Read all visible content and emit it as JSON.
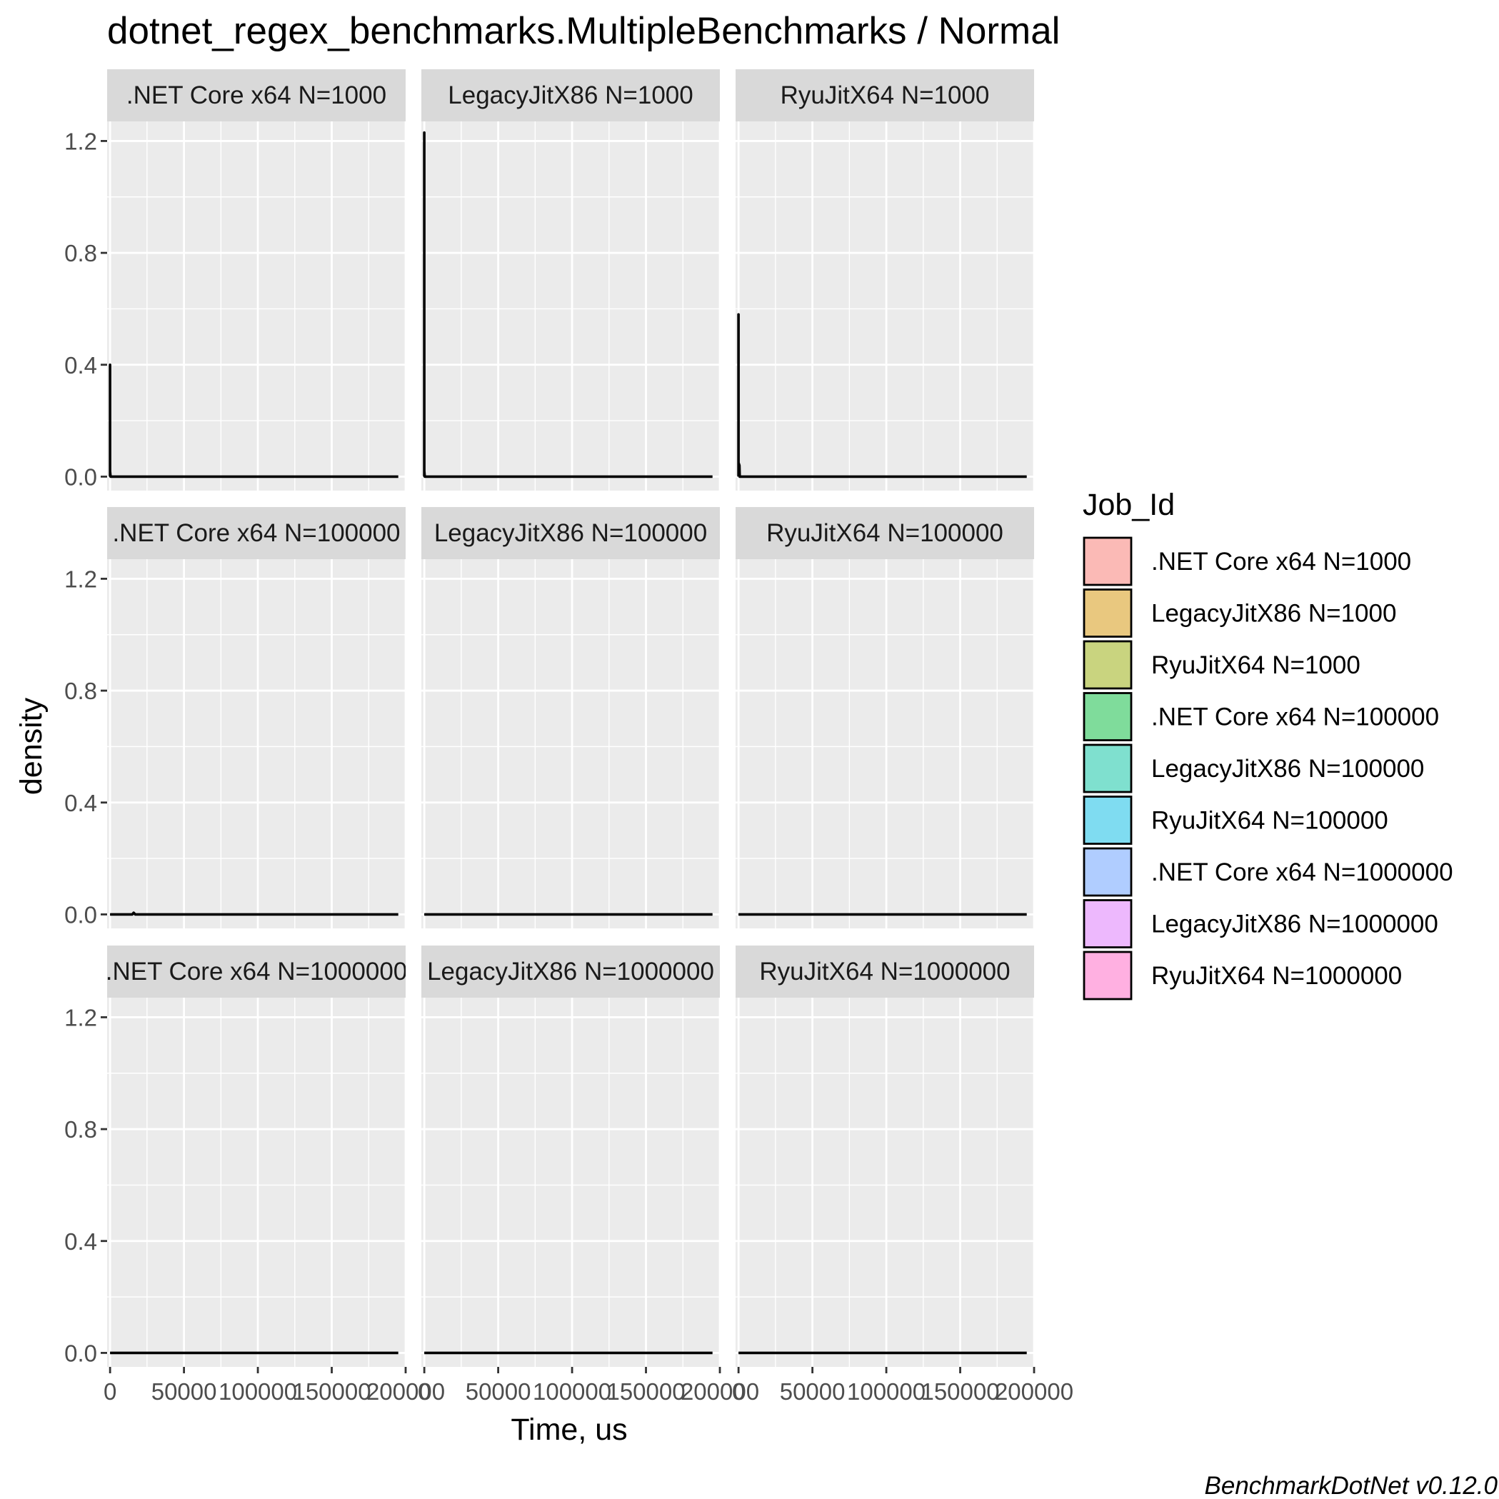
{
  "chart_data": {
    "type": "area",
    "title": "dotnet_regex_benchmarks.MultipleBenchmarks / Normal",
    "xlabel": "Time, us",
    "ylabel": "density",
    "xlim": [
      -2000,
      200000
    ],
    "ylim": [
      -0.05,
      1.27
    ],
    "xticks": [
      0,
      50000,
      100000,
      150000,
      200000
    ],
    "xtick_labels": [
      "0",
      "50000",
      "100000",
      "150000",
      "200000"
    ],
    "yticks": [
      0.0,
      0.4,
      0.8,
      1.2
    ],
    "ytick_labels": [
      "0.0",
      "0.4",
      "0.8",
      "1.2"
    ],
    "grid": true,
    "legend": {
      "title": "Job_Id",
      "placement": "right",
      "entries": [
        {
          "label": ".NET Core x64 N=1000",
          "color": "#F8766D"
        },
        {
          "label": "LegacyJitX86 N=1000",
          "color": "#D39200"
        },
        {
          "label": "RyuJitX64 N=1000",
          "color": "#93AA00"
        },
        {
          "label": ".NET Core x64 N=100000",
          "color": "#00BA38"
        },
        {
          "label": "LegacyJitX86 N=100000",
          "color": "#00C19F"
        },
        {
          "label": "RyuJitX64 N=100000",
          "color": "#00B9E3"
        },
        {
          "label": ".NET Core x64 N=1000000",
          "color": "#619CFF"
        },
        {
          "label": "LegacyJitX86 N=1000000",
          "color": "#DB72FB"
        },
        {
          "label": "RyuJitX64 N=1000000",
          "color": "#FF61C3"
        }
      ]
    },
    "panels": [
      {
        "label": ".NET Core x64 N=1000",
        "color": "#F8766D",
        "x": [
          0,
          0,
          0,
          0,
          300,
          195000
        ],
        "y": [
          0,
          0.4,
          0.4,
          0.02,
          0,
          0
        ]
      },
      {
        "label": "LegacyJitX86 N=1000",
        "color": "#D39200",
        "x": [
          0,
          0,
          0,
          0,
          300,
          195000
        ],
        "y": [
          0,
          1.23,
          1.23,
          0.02,
          0,
          0
        ]
      },
      {
        "label": "RyuJitX64 N=1000",
        "color": "#93AA00",
        "x": [
          0,
          0,
          0,
          0,
          600,
          800,
          195000
        ],
        "y": [
          0,
          0.58,
          0.58,
          0.05,
          0.04,
          0,
          0
        ]
      },
      {
        "label": ".NET Core x64 N=100000",
        "color": "#00BA38",
        "x": [
          0,
          15000,
          16000,
          17000,
          195000
        ],
        "y": [
          0,
          0,
          0.006,
          0,
          0
        ]
      },
      {
        "label": "LegacyJitX86 N=100000",
        "color": "#00C19F",
        "x": [
          0,
          195000
        ],
        "y": [
          0,
          0
        ]
      },
      {
        "label": "RyuJitX64 N=100000",
        "color": "#00B9E3",
        "x": [
          0,
          195000
        ],
        "y": [
          0,
          0
        ]
      },
      {
        "label": ".NET Core x64 N=1000000",
        "color": "#619CFF",
        "x": [
          0,
          195000
        ],
        "y": [
          0,
          0
        ]
      },
      {
        "label": "LegacyJitX86 N=1000000",
        "color": "#DB72FB",
        "x": [
          0,
          195000
        ],
        "y": [
          0,
          0
        ]
      },
      {
        "label": "RyuJitX64 N=1000000",
        "color": "#FF61C3",
        "x": [
          0,
          195000
        ],
        "y": [
          0,
          0
        ]
      }
    ],
    "caption": "BenchmarkDotNet v0.12.0"
  }
}
